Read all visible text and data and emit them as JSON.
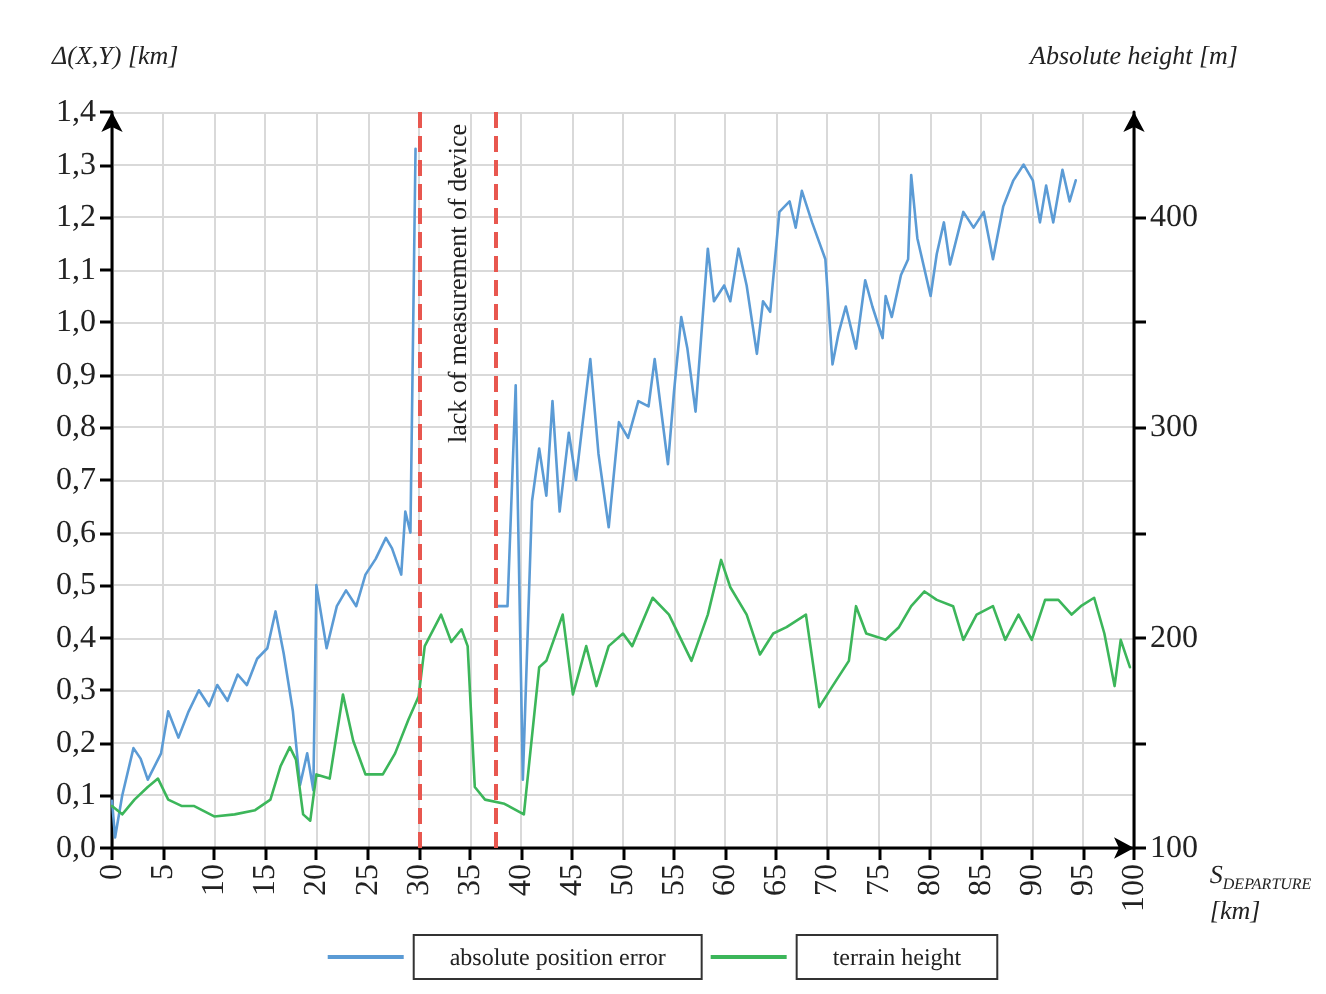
{
  "chart_data": {
    "type": "line",
    "xlabel": "S$_{DEPARTURE}$ [km]",
    "ylabel": "Δ(X,Y) [km]",
    "y2label": "Absolute height [m]",
    "xlim": [
      0,
      100
    ],
    "xticks": [
      0,
      5,
      10,
      15,
      20,
      25,
      30,
      35,
      40,
      45,
      50,
      55,
      60,
      65,
      70,
      75,
      80,
      85,
      90,
      95,
      100
    ],
    "ylim": [
      0,
      1.4
    ],
    "yticks": [
      {
        "value": 0,
        "label": "0,0"
      },
      {
        "value": 0.1,
        "label": "0,1"
      },
      {
        "value": 0.2,
        "label": "0,2"
      },
      {
        "value": 0.3,
        "label": "0,3"
      },
      {
        "value": 0.4,
        "label": "0,4"
      },
      {
        "value": 0.5,
        "label": "0,5"
      },
      {
        "value": 0.6,
        "label": "0,6"
      },
      {
        "value": 0.7,
        "label": "0,7"
      },
      {
        "value": 0.8,
        "label": "0,8"
      },
      {
        "value": 0.9,
        "label": "0,9"
      },
      {
        "value": 1.0,
        "label": "1,0"
      },
      {
        "value": 1.1,
        "label": "1,1"
      },
      {
        "value": 1.2,
        "label": "1,2"
      },
      {
        "value": 1.3,
        "label": "1,3"
      },
      {
        "value": 1.4,
        "label": "1,4"
      }
    ],
    "y2lim": [
      100,
      450
    ],
    "y2ticks": [
      100,
      {
        "value": 150,
        "label": null
      },
      200,
      {
        "value": 250,
        "label": null
      },
      300,
      {
        "value": 350,
        "label": null
      },
      400
    ],
    "grid": true,
    "legend": "bottom",
    "marker": "none",
    "line_style": "solid",
    "ref_lines": [
      {
        "axis": "x",
        "value": 30,
        "color": "#e8574f",
        "line_style": "dashed"
      },
      {
        "axis": "x",
        "value": 37.5,
        "color": "#e8574f",
        "line_style": "dashed"
      }
    ],
    "annotations": [
      "lack of measurement of device"
    ],
    "series": [
      {
        "name": "absolute position error",
        "color": "#5b9bd5",
        "x": [
          0,
          0.3,
          1,
          2.1,
          2.8,
          3.5,
          4.8,
          5.5,
          6.5,
          7.5,
          8.5,
          9.5,
          10.3,
          11.3,
          12.3,
          13.2,
          14.2,
          15.2,
          16,
          16.8,
          17.7,
          18.4,
          19.1,
          19.7,
          20,
          21,
          22,
          22.9,
          23.9,
          24.8,
          25.8,
          26.8,
          27.4,
          28.3,
          28.7,
          29.2,
          29.7,
          33.7,
          37.7,
          38.7,
          39.5,
          40.2,
          41.1,
          41.8,
          42.5,
          43.1,
          43.8,
          44.7,
          45.4,
          46,
          46.8,
          47.6,
          48.6,
          49.6,
          50.5,
          51.5,
          52.5,
          53.1,
          54.4,
          55,
          55.7,
          56.3,
          57.1,
          58.3,
          58.9,
          59.9,
          60.5,
          61.3,
          62.1,
          63.1,
          63.7,
          64.4,
          65.3,
          66.3,
          66.9,
          67.5,
          68.5,
          69.8,
          70.5,
          71.1,
          71.8,
          72.8,
          73.7,
          74.4,
          75.4,
          75.7,
          76.3,
          77.2,
          77.9,
          78.2,
          78.8,
          80.1,
          80.7,
          81.4,
          82,
          83.3,
          84.3,
          85.3,
          86.2,
          87.2,
          88.2,
          89.2,
          90.1,
          90.8,
          91.4,
          92.1,
          93,
          93.7,
          94.3
        ],
        "values": [
          0.09,
          0.02,
          0.1,
          0.19,
          0.17,
          0.13,
          0.18,
          0.26,
          0.21,
          0.26,
          0.3,
          0.27,
          0.31,
          0.28,
          0.33,
          0.31,
          0.36,
          0.38,
          0.45,
          0.37,
          0.26,
          0.12,
          0.18,
          0.11,
          0.5,
          0.38,
          0.46,
          0.49,
          0.46,
          0.52,
          0.55,
          0.59,
          0.57,
          0.52,
          0.64,
          0.6,
          1.33,
          null,
          0.46,
          0.46,
          0.88,
          0.13,
          0.66,
          0.76,
          0.67,
          0.85,
          0.64,
          0.79,
          0.7,
          0.8,
          0.93,
          0.75,
          0.61,
          0.81,
          0.78,
          0.85,
          0.84,
          0.93,
          0.73,
          0.87,
          1.01,
          0.95,
          0.83,
          1.14,
          1.04,
          1.07,
          1.04,
          1.14,
          1.07,
          0.94,
          1.04,
          1.02,
          1.21,
          1.23,
          1.18,
          1.25,
          1.19,
          1.12,
          0.92,
          0.98,
          1.03,
          0.95,
          1.08,
          1.03,
          0.97,
          1.05,
          1.01,
          1.09,
          1.12,
          1.28,
          1.16,
          1.05,
          1.13,
          1.19,
          1.11,
          1.21,
          1.18,
          1.21,
          1.12,
          1.22,
          1.27,
          1.3,
          1.27,
          1.19,
          1.26,
          1.19,
          1.29,
          1.23,
          1.27
        ]
      },
      {
        "name": "terrain height",
        "color": "#3cb65a",
        "axis": "y2",
        "x": [
          0,
          1,
          2.2,
          3.5,
          4.5,
          5.5,
          6.8,
          8,
          10,
          12,
          14,
          15.5,
          16.5,
          17.4,
          18,
          18.7,
          19.4,
          20,
          21.3,
          22.6,
          23.6,
          24.8,
          26.5,
          27.7,
          29,
          30,
          30.6,
          32.2,
          33.2,
          34.2,
          34.8,
          35.5,
          36.5,
          38.4,
          40.3,
          41.8,
          42.5,
          44.1,
          45.1,
          46.4,
          47.4,
          48.6,
          50,
          50.9,
          52.9,
          54.5,
          56.7,
          58.3,
          59.6,
          60.5,
          62.1,
          63.4,
          64.7,
          66,
          67.9,
          69.2,
          70.5,
          72.1,
          72.8,
          73.8,
          75.7,
          77,
          78.2,
          79.5,
          80.7,
          82.3,
          83.3,
          84.6,
          86.2,
          87.4,
          88.7,
          90,
          91.3,
          92.6,
          93.9,
          94.8,
          96.1,
          97.1,
          98.1,
          98.7,
          99.6
        ],
        "values": [
          120,
          116,
          123,
          129,
          133,
          123,
          120,
          120,
          115,
          116,
          118,
          123,
          139,
          148,
          142,
          116,
          113,
          135,
          133,
          173,
          151,
          135,
          135,
          145,
          161,
          172,
          196,
          211,
          198,
          204,
          196,
          129,
          123,
          121,
          116,
          186,
          189,
          211,
          173,
          196,
          177,
          196,
          202,
          196,
          219,
          211,
          189,
          211,
          237,
          224,
          211,
          192,
          202,
          205,
          211,
          167,
          177,
          189,
          215,
          202,
          199,
          205,
          215,
          222,
          218,
          215,
          199,
          211,
          215,
          199,
          211,
          199,
          218,
          218,
          211,
          215,
          219,
          202,
          177,
          199,
          186
        ]
      }
    ]
  }
}
